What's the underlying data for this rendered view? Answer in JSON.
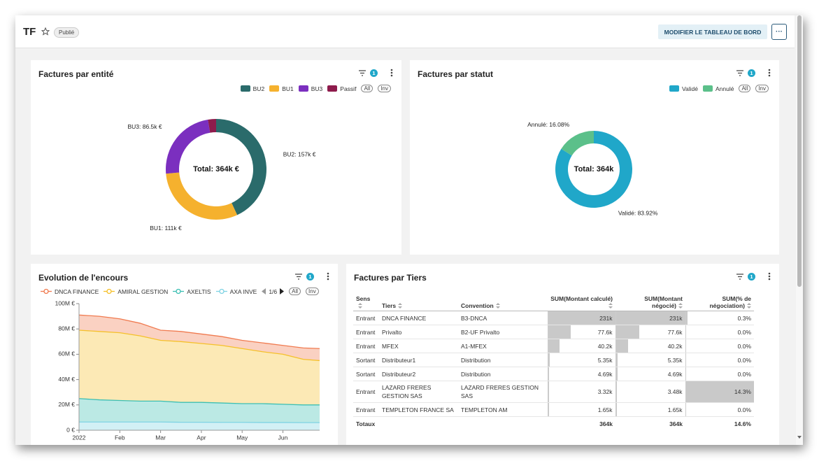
{
  "header": {
    "title": "TF",
    "status": "Publié",
    "edit_button": "MODIFIER LE TABLEAU DE BORD",
    "more_button": "···"
  },
  "chart_data": [
    {
      "type": "pie",
      "title": "Factures par entité",
      "filter_count": 1,
      "center_label": "Total: 364k €",
      "categories": [
        "BU2",
        "BU1",
        "BU3",
        "Passif"
      ],
      "values": [
        157,
        111,
        86.5,
        9.5
      ],
      "value_labels": [
        "BU2: 157k €",
        "BU1: 111k €",
        "BU3: 86.5k €",
        null
      ],
      "colors": [
        "#2a6b6b",
        "#f5b12e",
        "#7b2fbf",
        "#8e1b4c"
      ],
      "legend_buttons": [
        "All",
        "Inv"
      ]
    },
    {
      "type": "pie",
      "title": "Factures par statut",
      "filter_count": 1,
      "center_label": "Total: 364k",
      "categories": [
        "Validé",
        "Annulé"
      ],
      "values": [
        83.92,
        16.08
      ],
      "value_labels": [
        "Validé: 83.92%",
        "Annulé: 16.08%"
      ],
      "colors": [
        "#20a7c9",
        "#5bc08a"
      ],
      "legend_buttons": [
        "All",
        "Inv"
      ]
    },
    {
      "type": "area",
      "stacked": true,
      "title": "Evolution de l'encours",
      "filter_count": 1,
      "x": [
        0,
        0.5,
        1,
        1.5,
        2,
        2.5,
        3,
        3.5,
        4,
        4.5,
        5,
        5.5,
        5.9
      ],
      "xlim": [
        0,
        5.9
      ],
      "xticks": [
        {
          "value": 0,
          "label": "2022"
        },
        {
          "value": 1,
          "label": "Feb"
        },
        {
          "value": 2,
          "label": "Mar"
        },
        {
          "value": 3,
          "label": "Apr"
        },
        {
          "value": 4,
          "label": "May"
        },
        {
          "value": 5,
          "label": "Jun"
        }
      ],
      "ylim": [
        0,
        100
      ],
      "yticks": [
        {
          "value": 0,
          "label": "0 €"
        },
        {
          "value": 20,
          "label": "20M €"
        },
        {
          "value": 40,
          "label": "40M €"
        },
        {
          "value": 60,
          "label": "60M €"
        },
        {
          "value": 80,
          "label": "80M €"
        },
        {
          "value": 100,
          "label": "100M €"
        }
      ],
      "series": [
        {
          "name": "AXA INVE",
          "color": "#7fd3e3",
          "values": [
            6.5,
            6.5,
            6.5,
            6.5,
            6.5,
            6.3,
            6.3,
            6.2,
            6.2,
            6.1,
            6.1,
            6,
            6
          ]
        },
        {
          "name": "AXELTIS",
          "color": "#3cbfb3",
          "values": [
            18.5,
            17.5,
            17,
            16.5,
            16.5,
            15.7,
            15.7,
            15.3,
            14.8,
            14.9,
            14.4,
            14,
            14
          ]
        },
        {
          "name": "AMIRAL GESTION",
          "color": "#f5c02a",
          "values": [
            54,
            54,
            53.5,
            51.5,
            48,
            48,
            46.5,
            45.5,
            43.5,
            41,
            39.5,
            36,
            35
          ]
        },
        {
          "name": "DNCA FINANCE",
          "color": "#f07b50",
          "values": [
            12,
            12,
            11,
            10,
            8,
            8,
            7.5,
            7,
            6.5,
            7,
            7,
            9,
            9.5
          ]
        }
      ],
      "legend_page": "1/6",
      "legend_buttons": [
        "All",
        "Inv"
      ]
    }
  ],
  "table": {
    "title": "Factures par Tiers",
    "filter_count": 1,
    "columns": [
      "Sens",
      "Tiers",
      "Convention",
      "SUM(Montant calculé)",
      "SUM(Montant négocié)",
      "SUM(% de négociation)"
    ],
    "rows": [
      [
        "Entrant",
        "DNCA FINANCE",
        "B3-DNCA",
        {
          "value": 231,
          "label": "231k"
        },
        {
          "value": 231,
          "label": "231k"
        },
        {
          "value": 0.3,
          "label": "0.3%"
        }
      ],
      [
        "Entrant",
        "Privalto",
        "B2-UF Privalto",
        {
          "value": 77.6,
          "label": "77.6k"
        },
        {
          "value": 77.6,
          "label": "77.6k"
        },
        {
          "value": 0,
          "label": "0.0%"
        }
      ],
      [
        "Entrant",
        "MFEX",
        "A1-MFEX",
        {
          "value": 40.2,
          "label": "40.2k"
        },
        {
          "value": 40.2,
          "label": "40.2k"
        },
        {
          "value": 0,
          "label": "0.0%"
        }
      ],
      [
        "Sortant",
        "Distributeur1",
        "Distribution",
        {
          "value": 5.35,
          "label": "5.35k"
        },
        {
          "value": 5.35,
          "label": "5.35k"
        },
        {
          "value": 0,
          "label": "0.0%"
        }
      ],
      [
        "Sortant",
        "Distributeur2",
        "Distribution",
        {
          "value": 4.69,
          "label": "4.69k"
        },
        {
          "value": 4.69,
          "label": "4.69k"
        },
        {
          "value": 0,
          "label": "0.0%"
        }
      ],
      [
        "Entrant",
        "LAZARD FRERES GESTION SAS",
        "LAZARD FRERES GESTION SAS",
        {
          "value": 3.32,
          "label": "3.32k"
        },
        {
          "value": 3.48,
          "label": "3.48k"
        },
        {
          "value": 14.3,
          "label": "14.3%"
        }
      ],
      [
        "Entrant",
        "TEMPLETON FRANCE SA",
        "TEMPLETON AM",
        {
          "value": 1.65,
          "label": "1.65k"
        },
        {
          "value": 1.65,
          "label": "1.65k"
        },
        {
          "value": 0,
          "label": "0.0%"
        }
      ]
    ],
    "totals": {
      "label": "Totaux",
      "cells": [
        {
          "value": 364,
          "label": "364k"
        },
        {
          "value": 364,
          "label": "364k"
        },
        {
          "value": 14.6,
          "label": "14.6%"
        }
      ]
    }
  }
}
